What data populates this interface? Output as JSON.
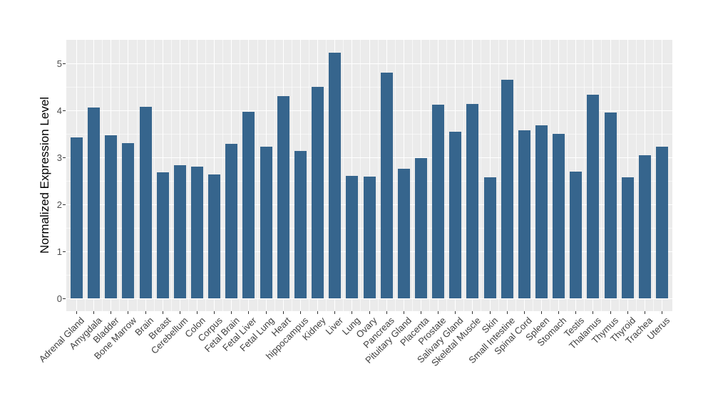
{
  "chart_data": {
    "type": "bar",
    "title": "",
    "xlabel": "",
    "ylabel": "Normalized Expression Level",
    "categories": [
      "Adrenal Gland",
      "Amygdala",
      "Bladder",
      "Bone Marrow",
      "Brain",
      "Breast",
      "Cerebellum",
      "Colon",
      "Corpus",
      "Fetal Brain",
      "Fetal Liver",
      "Fetal Lung",
      "Heart",
      "hippocampus",
      "Kidney",
      "Liver",
      "Lung",
      "Ovary",
      "Pancreas",
      "Pituitary Gland",
      "Placenta",
      "Prostate",
      "Salivary Gland",
      "Skeletal Muscle",
      "Skin",
      "Small Intestine",
      "Spinal Cord",
      "Spleen",
      "Stomach",
      "Testis",
      "Thalamus",
      "Thymus",
      "Thyroid",
      "Trachea",
      "Uterus"
    ],
    "values": [
      3.43,
      4.06,
      3.47,
      3.3,
      4.07,
      2.68,
      2.83,
      2.81,
      2.63,
      3.29,
      3.97,
      3.23,
      4.31,
      3.14,
      4.5,
      5.23,
      2.61,
      2.59,
      4.8,
      2.76,
      2.98,
      4.12,
      3.55,
      4.14,
      2.57,
      4.65,
      3.58,
      3.68,
      3.5,
      2.7,
      4.33,
      3.96,
      2.57,
      3.04,
      3.23
    ],
    "yticks": [
      0,
      1,
      2,
      3,
      4,
      5
    ],
    "ylim": [
      0,
      5.5
    ],
    "grid": true,
    "legend": false,
    "colors": {
      "bar": "#36658D",
      "panel_background": "#EBEBEB",
      "gridline": "#FFFFFF",
      "axis_text": "#4D4D4D",
      "tick_mark": "#333333",
      "axis_title": "#000000",
      "figure_background": "#FFFFFF"
    }
  }
}
